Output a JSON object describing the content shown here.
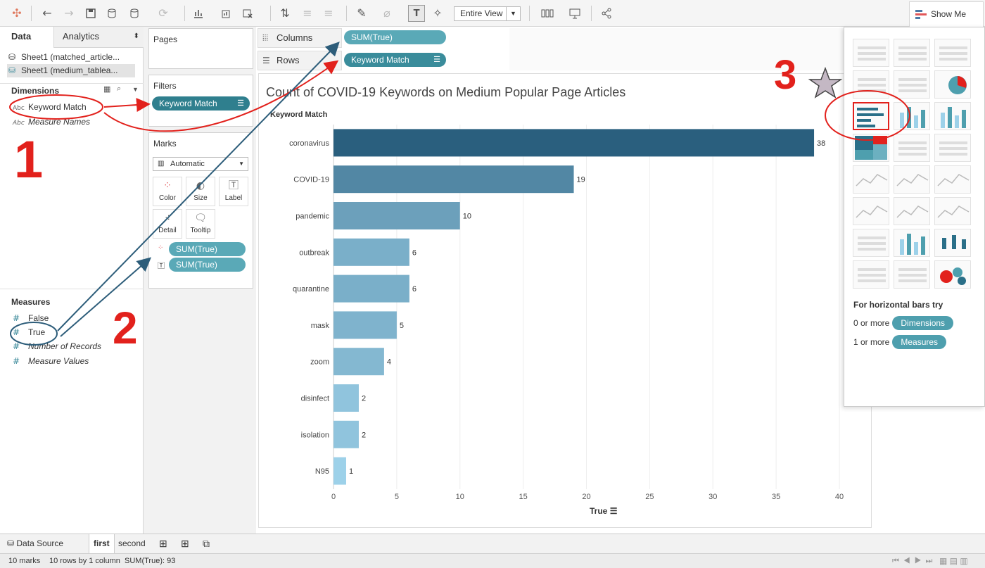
{
  "toolbar": {
    "fit_label": "Entire View",
    "showme_label": "Show Me"
  },
  "left_pane": {
    "tabs": [
      "Data",
      "Analytics"
    ],
    "sources": [
      "Sheet1 (matched_article...",
      "Sheet1 (medium_tablea..."
    ],
    "dimensions_header": "Dimensions",
    "dimensions": [
      {
        "type": "Abc",
        "label": "Keyword Match",
        "italic": false
      },
      {
        "type": "Abc",
        "label": "Measure Names",
        "italic": true
      }
    ],
    "measures_header": "Measures",
    "measures": [
      {
        "type": "#",
        "label": "False",
        "italic": false
      },
      {
        "type": "#",
        "label": "True",
        "italic": false
      },
      {
        "type": "#",
        "label": "Number of Records",
        "italic": true
      },
      {
        "type": "#",
        "label": "Measure Values",
        "italic": true
      }
    ]
  },
  "cards": {
    "pages_title": "Pages",
    "filters_title": "Filters",
    "filter_pill": "Keyword Match",
    "marks_title": "Marks",
    "mark_type": "Automatic",
    "mark_buttons": [
      "Color",
      "Size",
      "Label",
      "Detail",
      "Tooltip"
    ],
    "mark_pills": [
      "SUM(True)",
      "SUM(True)"
    ]
  },
  "shelves": {
    "columns_label": "Columns",
    "columns_pill": "SUM(True)",
    "rows_label": "Rows",
    "rows_pill": "Keyword Match"
  },
  "chart_data": {
    "type": "bar",
    "orientation": "horizontal",
    "title": "Count of COVID-19 Keywords on Medium Popular Page Articles",
    "row_header": "Keyword Match",
    "xlabel": "True",
    "categories": [
      "coronavirus",
      "COVID-19",
      "pandemic",
      "outbreak",
      "quarantine",
      "mask",
      "zoom",
      "disinfect",
      "isolation",
      "N95"
    ],
    "values": [
      38,
      19,
      10,
      6,
      6,
      5,
      4,
      2,
      2,
      1
    ],
    "xlim": [
      0,
      40
    ],
    "xticks": [
      0,
      5,
      10,
      15,
      20,
      25,
      30,
      35,
      40
    ],
    "colors": {
      "low": "#9dd1e9",
      "high": "#2a5f7e"
    },
    "grid": true
  },
  "showme": {
    "hint_title": "For horizontal bars try",
    "hint_lines": [
      {
        "prefix": "0 or more",
        "pill": "Dimensions"
      },
      {
        "prefix": "1 or more",
        "pill": "Measures"
      }
    ]
  },
  "sheet_tabs": {
    "data_source": "Data Source",
    "tabs": [
      "first",
      "second"
    ]
  },
  "status": {
    "marks": "10 marks",
    "rows": "10 rows by 1 column",
    "sum": "SUM(True): 93"
  },
  "annotations": {
    "step1": "1",
    "step2": "2",
    "step3": "3",
    "color_red": "#e2211c",
    "color_blue": "#2d5d7a"
  }
}
